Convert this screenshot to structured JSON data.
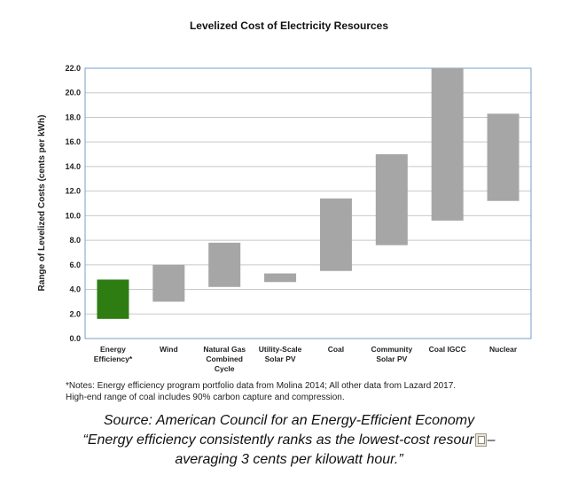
{
  "chart_data": {
    "type": "floating-bar",
    "title": "Levelized Cost of Electricity Resources",
    "xlabel": "",
    "ylabel": "Range of Levelized Costs (cents per kWh)",
    "ylim": [
      0,
      22
    ],
    "yticks": [
      "0.0",
      "2.0",
      "4.0",
      "6.0",
      "8.0",
      "10.0",
      "12.0",
      "14.0",
      "16.0",
      "18.0",
      "20.0",
      "22.0"
    ],
    "grid": true,
    "categories": [
      {
        "lines": [
          "Energy",
          "Efficiency*"
        ],
        "low": 1.6,
        "high": 4.8,
        "color": "#2e7d12"
      },
      {
        "lines": [
          "Wind"
        ],
        "low": 3.0,
        "high": 6.0,
        "color": "#a6a6a6"
      },
      {
        "lines": [
          "Natural Gas",
          "Combined",
          "Cycle"
        ],
        "low": 4.2,
        "high": 7.8,
        "color": "#a6a6a6"
      },
      {
        "lines": [
          "Utility-Scale",
          "Solar PV"
        ],
        "low": 4.6,
        "high": 5.3,
        "color": "#a6a6a6"
      },
      {
        "lines": [
          "Coal"
        ],
        "low": 5.5,
        "high": 11.4,
        "color": "#a6a6a6"
      },
      {
        "lines": [
          "Community",
          "Solar PV"
        ],
        "low": 7.6,
        "high": 15.0,
        "color": "#a6a6a6"
      },
      {
        "lines": [
          "Coal IGCC"
        ],
        "low": 9.6,
        "high": 22.0,
        "color": "#a6a6a6"
      },
      {
        "lines": [
          "Nuclear"
        ],
        "low": 11.2,
        "high": 18.3,
        "color": "#a6a6a6"
      }
    ]
  },
  "notes": {
    "line1": "*Notes: Energy efficiency program portfolio data from Molina 2014; All other data from Lazard 2017.",
    "line2": "High-end range of coal includes 90% carbon capture and compression."
  },
  "caption": {
    "line1": "Source: American Council for an Energy-Efficient Economy",
    "line2a": "“Energy efficiency consistently ranks as the lowest-cost resour",
    "line2b": "–",
    "line3": "averaging 3 cents per kilowatt hour.”"
  },
  "icons": {
    "paste": "paste-icon"
  }
}
